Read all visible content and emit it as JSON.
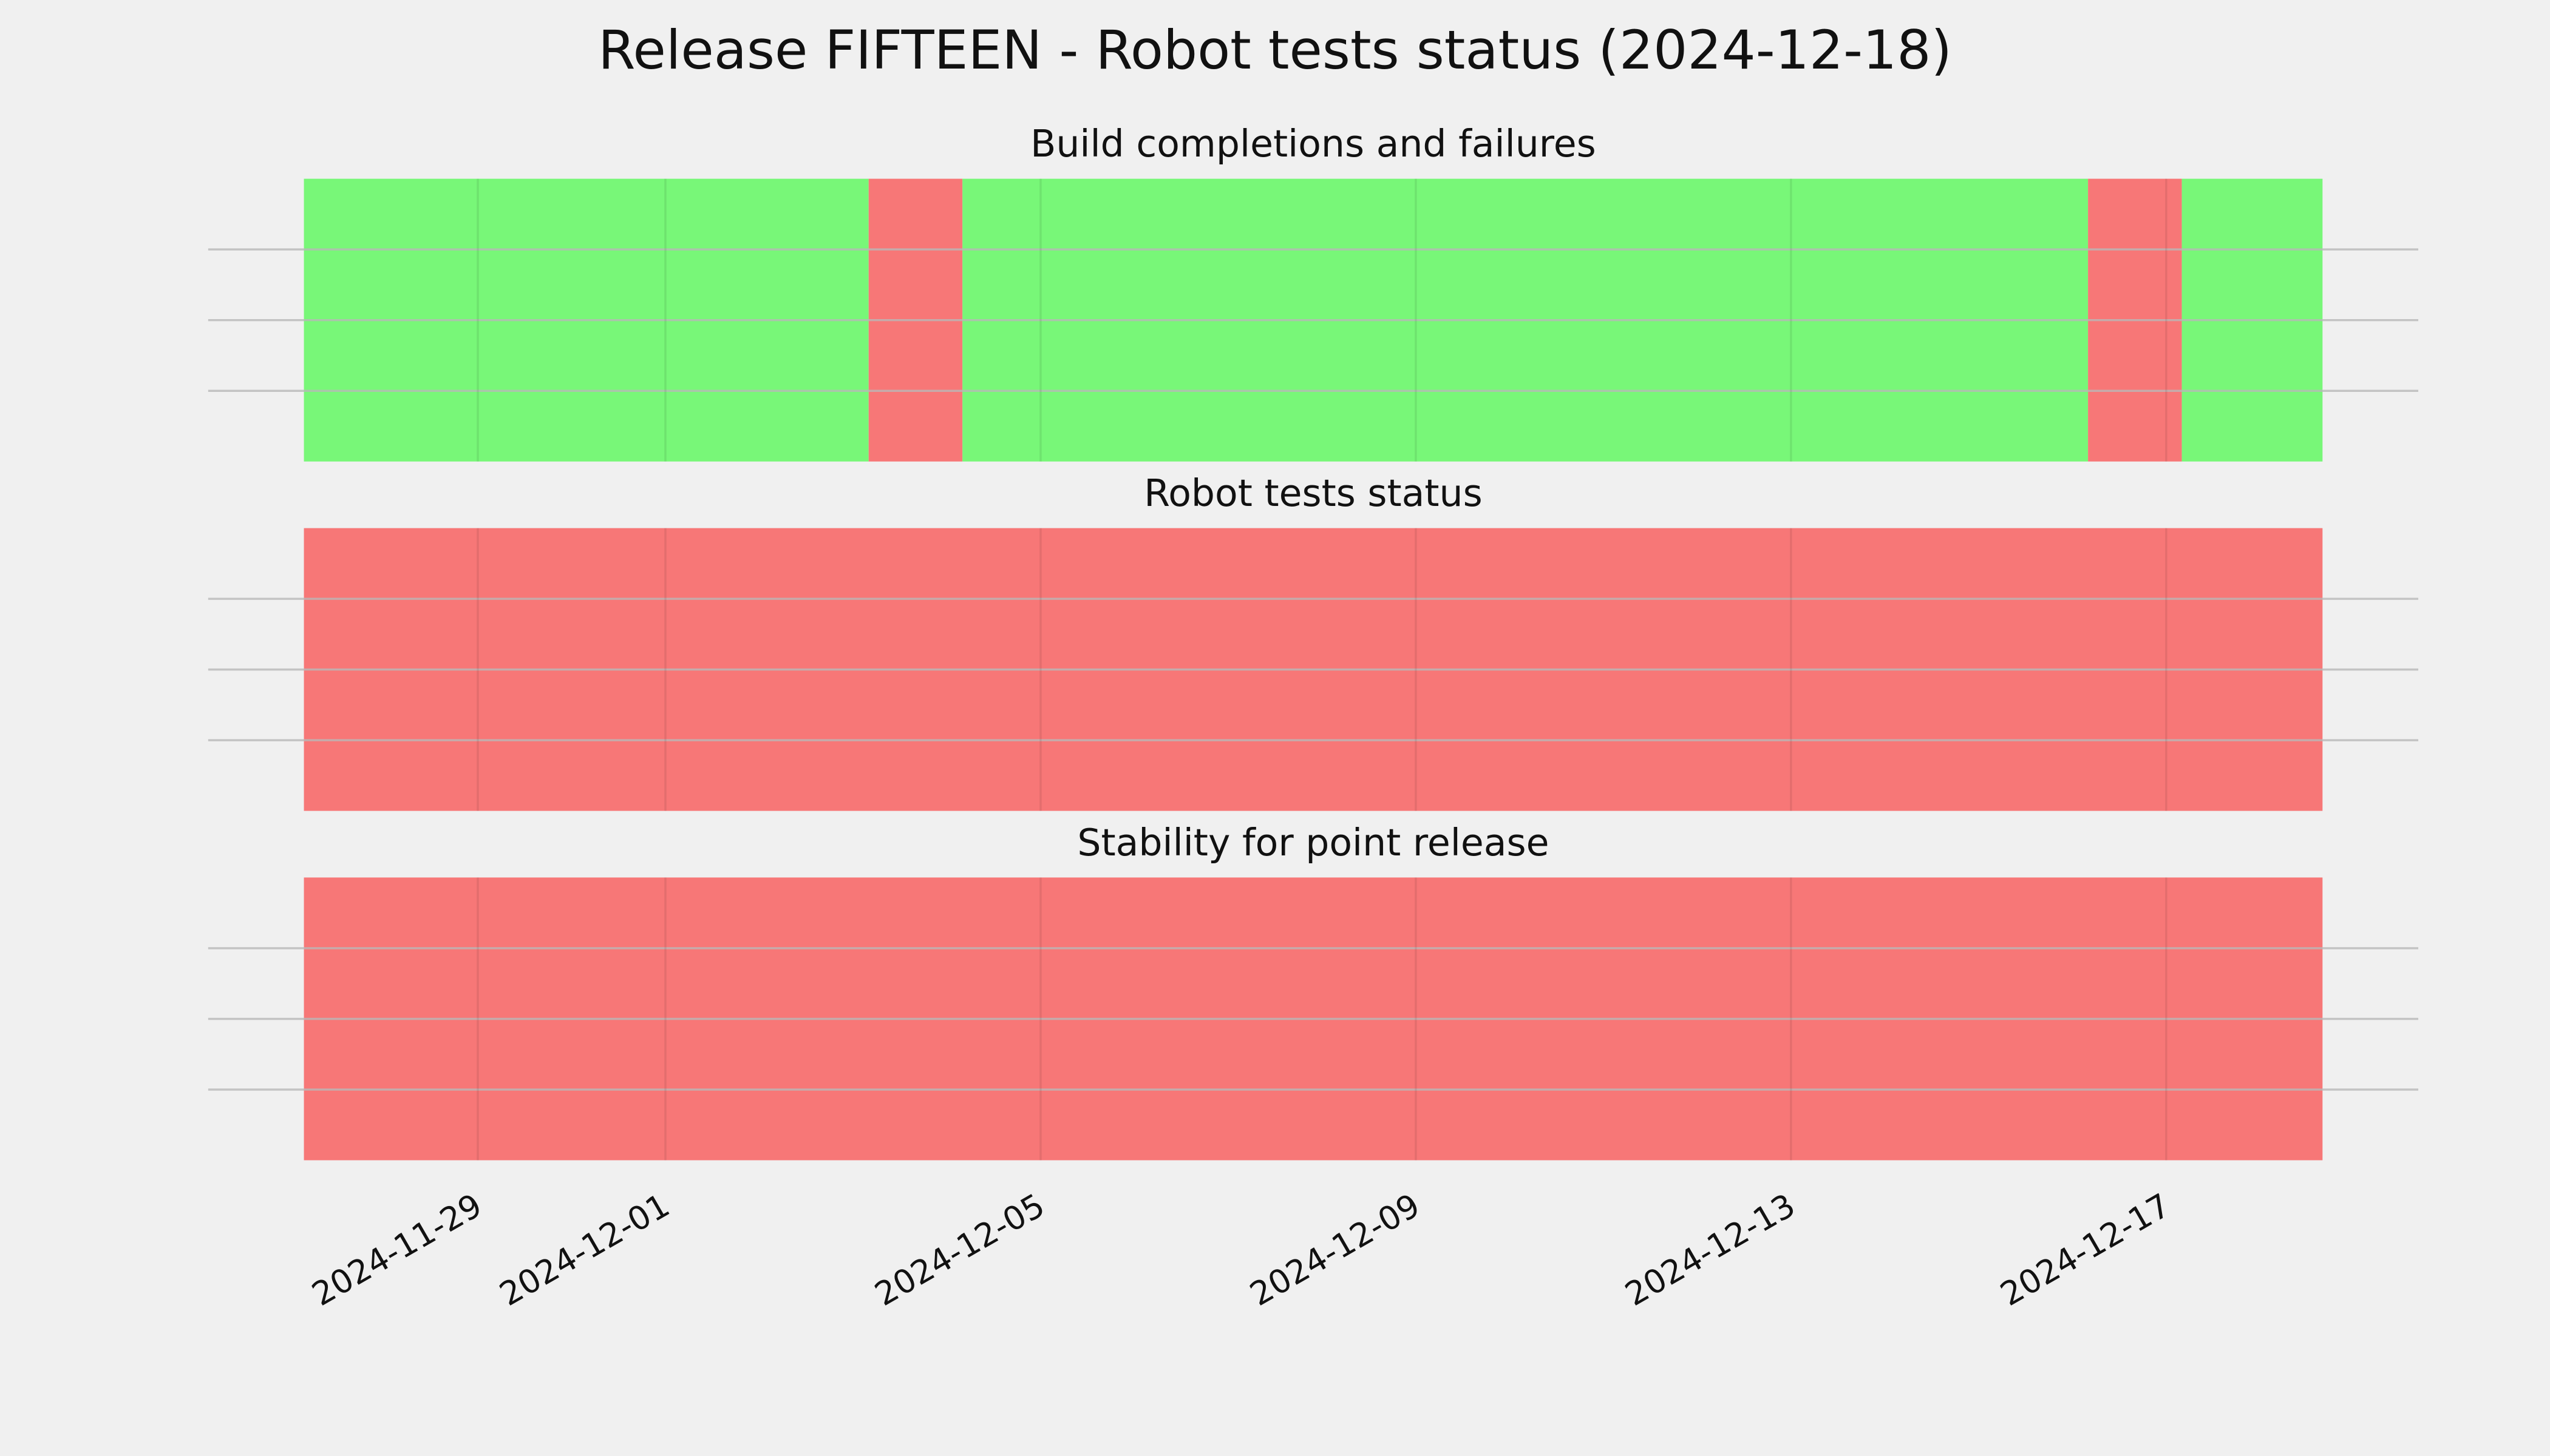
{
  "title": "Release FIFTEEN - Robot tests status (2024-12-18)",
  "chart_data": [
    {
      "type": "timeline",
      "title": "Build completions and failures",
      "xlim": [
        "2024-11-26T03:00",
        "2024-12-19T16:30"
      ],
      "xticks": [
        "2024-11-29",
        "2024-12-01",
        "2024-12-05",
        "2024-12-09",
        "2024-12-13",
        "2024-12-17"
      ],
      "ylim": [
        0,
        1
      ],
      "yticks": [
        0.25,
        0.5,
        0.75
      ],
      "grid": true,
      "segments": [
        {
          "start": "2024-11-27T03:30",
          "end": "2024-12-03T04:00",
          "color": "#78f778"
        },
        {
          "start": "2024-12-03T04:00",
          "end": "2024-12-04T04:00",
          "color": "#f77777"
        },
        {
          "start": "2024-12-04T04:00",
          "end": "2024-12-16T04:00",
          "color": "#78f778"
        },
        {
          "start": "2024-12-16T04:00",
          "end": "2024-12-17T04:00",
          "color": "#f77777"
        },
        {
          "start": "2024-12-17T04:00",
          "end": "2024-12-18T16:00",
          "color": "#78f778"
        }
      ]
    },
    {
      "type": "timeline",
      "title": "Robot tests status",
      "xlim": [
        "2024-11-26T03:00",
        "2024-12-19T16:30"
      ],
      "xticks": [
        "2024-11-29",
        "2024-12-01",
        "2024-12-05",
        "2024-12-09",
        "2024-12-13",
        "2024-12-17"
      ],
      "ylim": [
        0,
        1
      ],
      "yticks": [
        0.25,
        0.5,
        0.75
      ],
      "grid": true,
      "segments": [
        {
          "start": "2024-11-27T03:30",
          "end": "2024-12-18T16:00",
          "color": "#f77777"
        }
      ]
    },
    {
      "type": "timeline",
      "title": "Stability for point release",
      "xlim": [
        "2024-11-26T03:00",
        "2024-12-19T16:30"
      ],
      "xticks": [
        "2024-11-29",
        "2024-12-01",
        "2024-12-05",
        "2024-12-09",
        "2024-12-13",
        "2024-12-17"
      ],
      "ylim": [
        0,
        1
      ],
      "yticks": [
        0.25,
        0.5,
        0.75
      ],
      "grid": true,
      "show_xtick_labels": true,
      "segments": [
        {
          "start": "2024-11-27T03:30",
          "end": "2024-12-18T16:00",
          "color": "#f77777"
        }
      ]
    }
  ]
}
